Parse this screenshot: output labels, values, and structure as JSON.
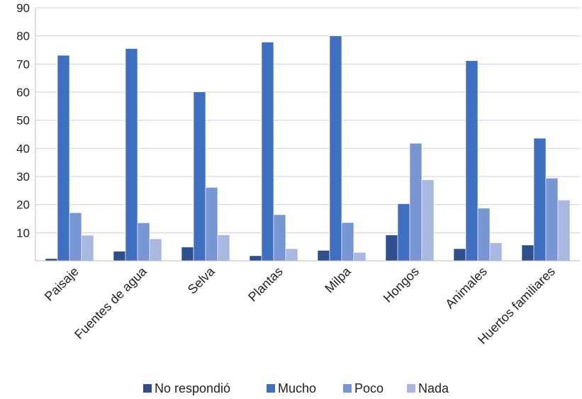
{
  "chart_data": {
    "type": "bar",
    "title": "",
    "xlabel": "",
    "ylabel": "",
    "ylim": [
      0,
      90
    ],
    "yticks": [
      10,
      20,
      30,
      40,
      50,
      60,
      70,
      80,
      90
    ],
    "grid": true,
    "legend_position": "bottom",
    "categories": [
      "Paisaje",
      "Fuentes de agua",
      "Selva",
      "Plantas",
      "Milpa",
      "Hongos",
      "Animales",
      "Huertos familiares"
    ],
    "series": [
      {
        "name": "No respondió",
        "color": "#2d4f8e",
        "values": [
          0.8,
          3.4,
          4.9,
          1.8,
          3.7,
          9.2,
          4.3,
          5.6
        ]
      },
      {
        "name": "Mucho",
        "color": "#3f6fc1",
        "values": [
          73.1,
          75.5,
          60.1,
          77.8,
          80.0,
          20.3,
          71.2,
          43.6
        ]
      },
      {
        "name": "Poco",
        "color": "#7a96d2",
        "values": [
          17.1,
          13.5,
          26.1,
          16.4,
          13.6,
          41.8,
          18.7,
          29.4
        ]
      },
      {
        "name": "Nada",
        "color": "#a9b9e1",
        "values": [
          9.1,
          7.8,
          9.2,
          4.3,
          3.0,
          28.8,
          6.4,
          21.6
        ]
      }
    ]
  }
}
